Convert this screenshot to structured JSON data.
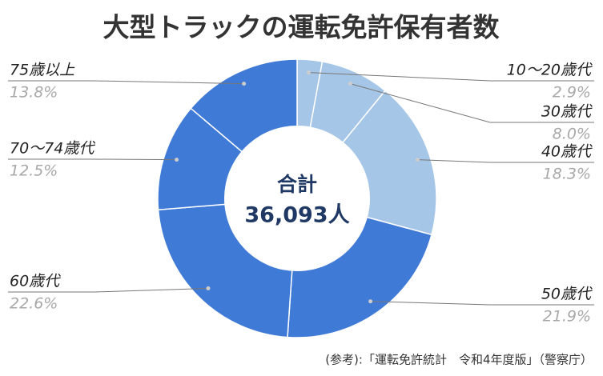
{
  "chart_data": {
    "type": "donut",
    "title": "大型トラックの運転免許保有者数",
    "center_label": "合計",
    "center_value": "36,093人",
    "categories": [
      "10〜20歳代",
      "30歳代",
      "40歳代",
      "50歳代",
      "60歳代",
      "70〜74歳代",
      "75歳以上"
    ],
    "values": [
      2.9,
      8.0,
      18.3,
      21.9,
      22.6,
      12.5,
      13.8
    ],
    "value_labels": [
      "2.9%",
      "8.0%",
      "18.3%",
      "21.9%",
      "22.6%",
      "12.5%",
      "13.8%"
    ],
    "colors": [
      "#a6c6e8",
      "#a6c6e8",
      "#a6c6e8",
      "#3f7ad6",
      "#3f7ad6",
      "#3f7ad6",
      "#3f7ad6"
    ],
    "source": "(参考):「運転免許統計　令和4年度版」（警察庁）"
  }
}
